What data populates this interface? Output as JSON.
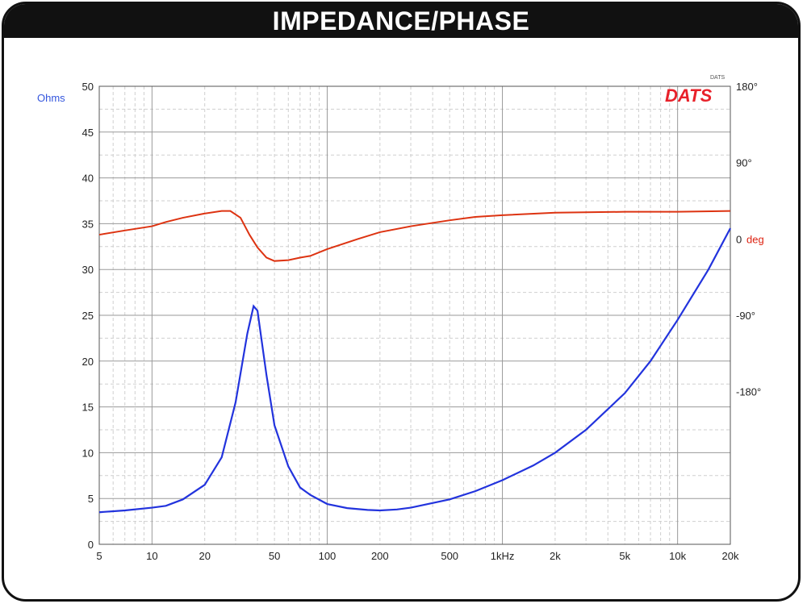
{
  "header": {
    "title": "IMPEDANCE/PHASE"
  },
  "logo": {
    "text": "DATS",
    "superscript": "DATS",
    "color": "#e8212a"
  },
  "colors": {
    "impedance": "#2233dd",
    "phase": "#dd3311",
    "left_unit": "#3355dd",
    "right_unit": "#dd2211",
    "grid_major": "#9a9a9a",
    "grid_minor": "#cfcfcf"
  },
  "chart_data": {
    "type": "line",
    "title": "IMPEDANCE/PHASE",
    "x_scale": "log",
    "xlim": [
      5,
      20000
    ],
    "x_ticks": [
      {
        "value": 5,
        "label": "5"
      },
      {
        "value": 10,
        "label": "10"
      },
      {
        "value": 20,
        "label": "20"
      },
      {
        "value": 50,
        "label": "50"
      },
      {
        "value": 100,
        "label": "100"
      },
      {
        "value": 200,
        "label": "200"
      },
      {
        "value": 500,
        "label": "500"
      },
      {
        "value": 1000,
        "label": "1kHz"
      },
      {
        "value": 2000,
        "label": "2k"
      },
      {
        "value": 5000,
        "label": "5k"
      },
      {
        "value": 10000,
        "label": "10k"
      },
      {
        "value": 20000,
        "label": "20k"
      }
    ],
    "y_left": {
      "label": "Ohms",
      "ylim": [
        0,
        50
      ],
      "ticks": [
        0,
        5,
        10,
        15,
        20,
        25,
        30,
        35,
        40,
        45,
        50
      ]
    },
    "y_right": {
      "label": "deg",
      "ylim": [
        -360,
        180
      ],
      "ticks": [
        {
          "value": 180,
          "label": "180°"
        },
        {
          "value": 90,
          "label": "90°"
        },
        {
          "value": 0,
          "label": "0"
        },
        {
          "value": -90,
          "label": "-90°"
        },
        {
          "value": -180,
          "label": "-180°"
        }
      ]
    },
    "grid": true,
    "series": [
      {
        "axis": "left",
        "color": "#2233dd",
        "points": [
          [
            5,
            3.5
          ],
          [
            7,
            3.7
          ],
          [
            10,
            4.0
          ],
          [
            12,
            4.2
          ],
          [
            15,
            4.9
          ],
          [
            20,
            6.5
          ],
          [
            25,
            9.5
          ],
          [
            30,
            15.5
          ],
          [
            35,
            23.0
          ],
          [
            38,
            26.0
          ],
          [
            40,
            25.5
          ],
          [
            45,
            18.5
          ],
          [
            50,
            13.0
          ],
          [
            60,
            8.5
          ],
          [
            70,
            6.2
          ],
          [
            80,
            5.4
          ],
          [
            100,
            4.4
          ],
          [
            130,
            3.95
          ],
          [
            170,
            3.75
          ],
          [
            200,
            3.7
          ],
          [
            250,
            3.8
          ],
          [
            300,
            4.0
          ],
          [
            500,
            4.9
          ],
          [
            700,
            5.8
          ],
          [
            1000,
            7.0
          ],
          [
            1500,
            8.6
          ],
          [
            2000,
            10.0
          ],
          [
            3000,
            12.5
          ],
          [
            5000,
            16.5
          ],
          [
            7000,
            20.0
          ],
          [
            10000,
            24.5
          ],
          [
            15000,
            30.0
          ],
          [
            20000,
            34.5
          ]
        ]
      },
      {
        "axis": "right",
        "color": "#dd3311",
        "points": [
          [
            5,
            5
          ],
          [
            7,
            10
          ],
          [
            10,
            15
          ],
          [
            12,
            20
          ],
          [
            15,
            25
          ],
          [
            20,
            30
          ],
          [
            25,
            33
          ],
          [
            28,
            33
          ],
          [
            32,
            25
          ],
          [
            36,
            5
          ],
          [
            40,
            -10
          ],
          [
            45,
            -22
          ],
          [
            50,
            -26
          ],
          [
            60,
            -25
          ],
          [
            70,
            -22
          ],
          [
            80,
            -20
          ],
          [
            100,
            -12
          ],
          [
            150,
            0
          ],
          [
            200,
            8
          ],
          [
            300,
            15
          ],
          [
            500,
            22
          ],
          [
            700,
            26
          ],
          [
            1000,
            28
          ],
          [
            2000,
            31
          ],
          [
            5000,
            32
          ],
          [
            10000,
            32
          ],
          [
            20000,
            33
          ]
        ]
      }
    ]
  }
}
